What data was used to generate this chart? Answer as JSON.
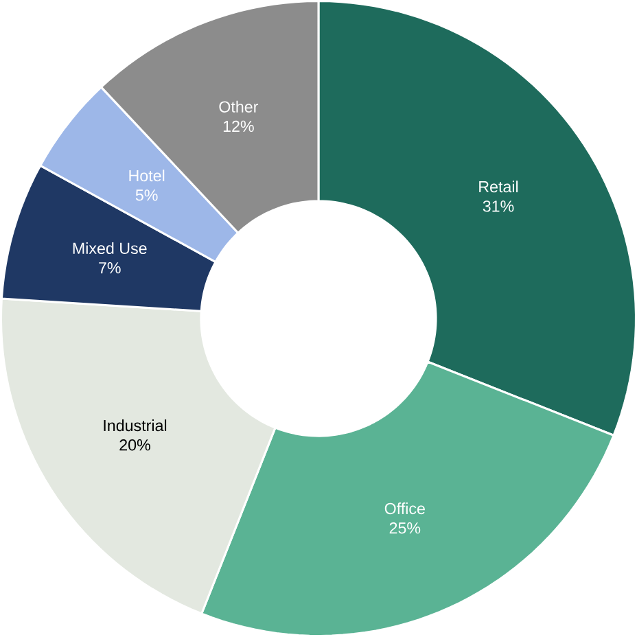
{
  "chart_data": {
    "type": "donut",
    "categories": [
      "Retail",
      "Office",
      "Industrial",
      "Mixed Use",
      "Hotel",
      "Other"
    ],
    "values": [
      31,
      25,
      20,
      7,
      5,
      12
    ],
    "colors": [
      "#1e6b5c",
      "#5ab394",
      "#e3e8e0",
      "#1f3864",
      "#9db7e8",
      "#8c8c8c"
    ],
    "value_labels": [
      "31%",
      "25%",
      "20%",
      "7%",
      "5%",
      "12%"
    ]
  }
}
